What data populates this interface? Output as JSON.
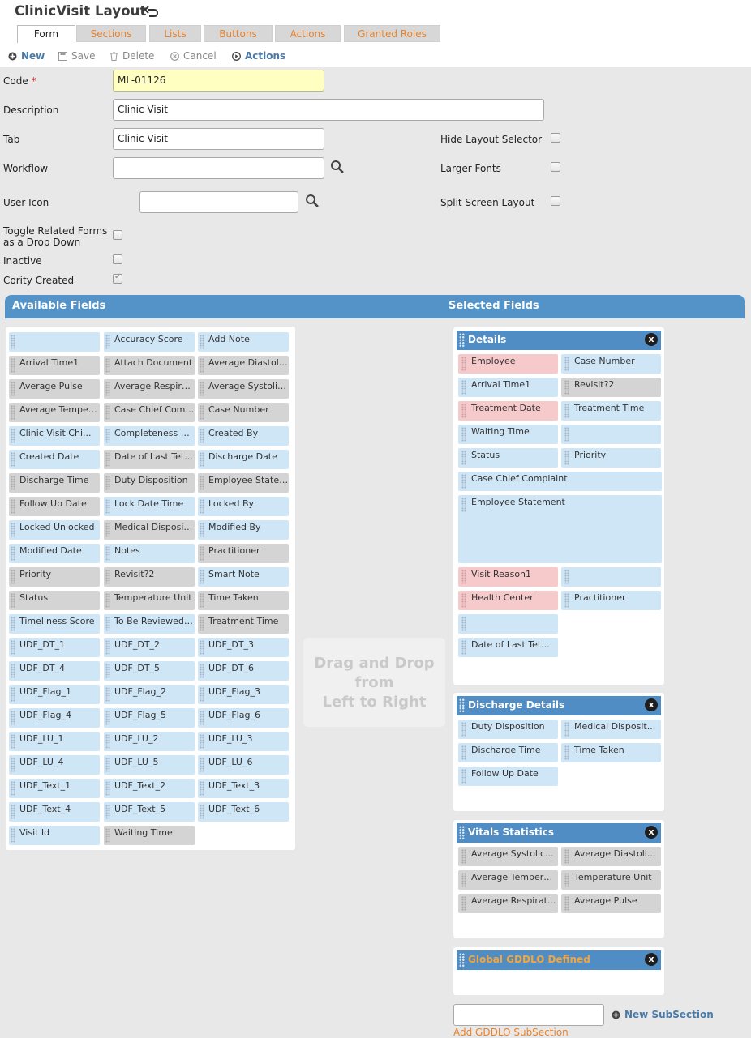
{
  "title": "ClinicVisit Layout",
  "tabs": [
    "Form",
    "Sections",
    "Lists",
    "Buttons",
    "Actions",
    "Granted Roles"
  ],
  "toolbar": {
    "new": "New",
    "save": "Save",
    "delete": "Delete",
    "cancel": "Cancel",
    "actions": "Actions"
  },
  "form": {
    "code_label": "Code",
    "required_mark": "*",
    "code_value": "ML-01126",
    "description_label": "Description",
    "description_value": "Clinic Visit",
    "tab_label": "Tab",
    "tab_value": "Clinic Visit",
    "workflow_label": "Workflow",
    "workflow_value": "",
    "user_icon_label": "User Icon",
    "user_icon_value": "",
    "toggle_label_1": "Toggle Related Forms",
    "toggle_label_2": "as a Drop Down",
    "inactive_label": "Inactive",
    "cority_created_label": "Cority Created",
    "hide_layout_label": "Hide Layout Selector",
    "larger_fonts_label": "Larger Fonts",
    "split_screen_label": "Split Screen Layout"
  },
  "checkboxes": {
    "hide_layout": false,
    "larger_fonts": false,
    "split_screen": false,
    "toggle_related": false,
    "inactive": false,
    "cority_created": true
  },
  "banner": {
    "available": "Available Fields",
    "selected": "Selected Fields"
  },
  "available_fields": [
    {
      "label": "",
      "color": "blue"
    },
    {
      "label": "Accuracy Score",
      "color": "blue"
    },
    {
      "label": "Add Note",
      "color": "blue"
    },
    {
      "label": "Arrival Time1",
      "color": "gray"
    },
    {
      "label": "Attach Document",
      "color": "gray"
    },
    {
      "label": "Average Diastoli...",
      "color": "gray"
    },
    {
      "label": "Average Pulse",
      "color": "gray"
    },
    {
      "label": "Average Respirat...",
      "color": "gray"
    },
    {
      "label": "Average Systolic...",
      "color": "gray"
    },
    {
      "label": "Average Temperat...",
      "color": "gray"
    },
    {
      "label": "Case Chief Compl...",
      "color": "gray"
    },
    {
      "label": "Case Number",
      "color": "gray"
    },
    {
      "label": "Clinic Visit Chi...",
      "color": "blue"
    },
    {
      "label": "Completeness Sco...",
      "color": "blue"
    },
    {
      "label": "Created By",
      "color": "blue"
    },
    {
      "label": "Created Date",
      "color": "blue"
    },
    {
      "label": "Date of Last Tet...",
      "color": "gray"
    },
    {
      "label": "Discharge Date",
      "color": "blue"
    },
    {
      "label": "Discharge Time",
      "color": "gray"
    },
    {
      "label": "Duty Disposition",
      "color": "gray"
    },
    {
      "label": "Employee Stateme...",
      "color": "gray"
    },
    {
      "label": "Follow Up Date",
      "color": "gray"
    },
    {
      "label": "Lock Date Time",
      "color": "blue"
    },
    {
      "label": "Locked By",
      "color": "blue"
    },
    {
      "label": "Locked Unlocked",
      "color": "blue"
    },
    {
      "label": "Medical Disposit...",
      "color": "gray"
    },
    {
      "label": "Modified By",
      "color": "blue"
    },
    {
      "label": "Modified Date",
      "color": "blue"
    },
    {
      "label": "Notes",
      "color": "blue"
    },
    {
      "label": "Practitioner",
      "color": "gray"
    },
    {
      "label": "Priority",
      "color": "gray"
    },
    {
      "label": "Revisit?2",
      "color": "gray"
    },
    {
      "label": "Smart Note",
      "color": "blue"
    },
    {
      "label": "Status",
      "color": "gray"
    },
    {
      "label": "Temperature Unit",
      "color": "gray"
    },
    {
      "label": "Time Taken",
      "color": "gray"
    },
    {
      "label": "Timeliness Score",
      "color": "blue"
    },
    {
      "label": "To Be Reviewed B...",
      "color": "blue"
    },
    {
      "label": "Treatment Time",
      "color": "gray"
    },
    {
      "label": "UDF_DT_1",
      "color": "blue"
    },
    {
      "label": "UDF_DT_2",
      "color": "blue"
    },
    {
      "label": "UDF_DT_3",
      "color": "blue"
    },
    {
      "label": "UDF_DT_4",
      "color": "blue"
    },
    {
      "label": "UDF_DT_5",
      "color": "blue"
    },
    {
      "label": "UDF_DT_6",
      "color": "blue"
    },
    {
      "label": "UDF_Flag_1",
      "color": "blue"
    },
    {
      "label": "UDF_Flag_2",
      "color": "blue"
    },
    {
      "label": "UDF_Flag_3",
      "color": "blue"
    },
    {
      "label": "UDF_Flag_4",
      "color": "blue"
    },
    {
      "label": "UDF_Flag_5",
      "color": "blue"
    },
    {
      "label": "UDF_Flag_6",
      "color": "blue"
    },
    {
      "label": "UDF_LU_1",
      "color": "blue"
    },
    {
      "label": "UDF_LU_2",
      "color": "blue"
    },
    {
      "label": "UDF_LU_3",
      "color": "blue"
    },
    {
      "label": "UDF_LU_4",
      "color": "blue"
    },
    {
      "label": "UDF_LU_5",
      "color": "blue"
    },
    {
      "label": "UDF_LU_6",
      "color": "blue"
    },
    {
      "label": "UDF_Text_1",
      "color": "blue"
    },
    {
      "label": "UDF_Text_2",
      "color": "blue"
    },
    {
      "label": "UDF_Text_3",
      "color": "blue"
    },
    {
      "label": "UDF_Text_4",
      "color": "blue"
    },
    {
      "label": "UDF_Text_5",
      "color": "blue"
    },
    {
      "label": "UDF_Text_6",
      "color": "blue"
    },
    {
      "label": "Visit Id",
      "color": "blue"
    },
    {
      "label": "Waiting Time",
      "color": "gray"
    }
  ],
  "dropzone": [
    "Drag and Drop",
    "from",
    "Left to Right"
  ],
  "sections": {
    "details": {
      "title": "Details",
      "close": "x",
      "fields": [
        {
          "label": "Employee",
          "color": "pink"
        },
        {
          "label": "Case Number",
          "color": "blue"
        },
        {
          "label": "Arrival Time1",
          "color": "blue"
        },
        {
          "label": "Revisit?2",
          "color": "gray"
        },
        {
          "label": "Treatment Date",
          "color": "pink"
        },
        {
          "label": "Treatment Time",
          "color": "blue"
        },
        {
          "label": "Waiting Time",
          "color": "blue"
        },
        {
          "label": "",
          "color": "blue"
        },
        {
          "label": "Status",
          "color": "blue"
        },
        {
          "label": "Priority",
          "color": "blue"
        },
        {
          "label": "Case Chief Complaint",
          "color": "blue"
        },
        {
          "label": "Employee Statement",
          "color": "blue"
        },
        {
          "label": "Visit Reason1",
          "color": "pink"
        },
        {
          "label": "",
          "color": "blue"
        },
        {
          "label": "Health Center",
          "color": "pink"
        },
        {
          "label": "Practitioner",
          "color": "blue"
        },
        {
          "label": "",
          "color": "blue"
        },
        {
          "label": "Date of Last Tet...",
          "color": "blue"
        }
      ]
    },
    "discharge": {
      "title": "Discharge Details",
      "close": "x",
      "fields": [
        {
          "label": "Duty Disposition",
          "color": "blue"
        },
        {
          "label": "Medical Disposit...",
          "color": "blue"
        },
        {
          "label": "Discharge Time",
          "color": "blue"
        },
        {
          "label": "Time Taken",
          "color": "blue"
        },
        {
          "label": "Follow Up Date",
          "color": "blue"
        }
      ]
    },
    "vitals": {
      "title": "Vitals Statistics",
      "close": "x",
      "fields": [
        {
          "label": "Average Systolic...",
          "color": "gray"
        },
        {
          "label": "Average Diastoli...",
          "color": "gray"
        },
        {
          "label": "Average Temperat...",
          "color": "gray"
        },
        {
          "label": "Temperature Unit",
          "color": "gray"
        },
        {
          "label": "Average Respirat...",
          "color": "gray"
        },
        {
          "label": "Average Pulse",
          "color": "gray"
        }
      ]
    },
    "global": {
      "title": "Global GDDLO Defined",
      "close": "x"
    }
  },
  "footer": {
    "new_subsection": "New SubSection",
    "new_subsection_value": "",
    "add_gddlo": "Add GDDLO SubSection"
  }
}
